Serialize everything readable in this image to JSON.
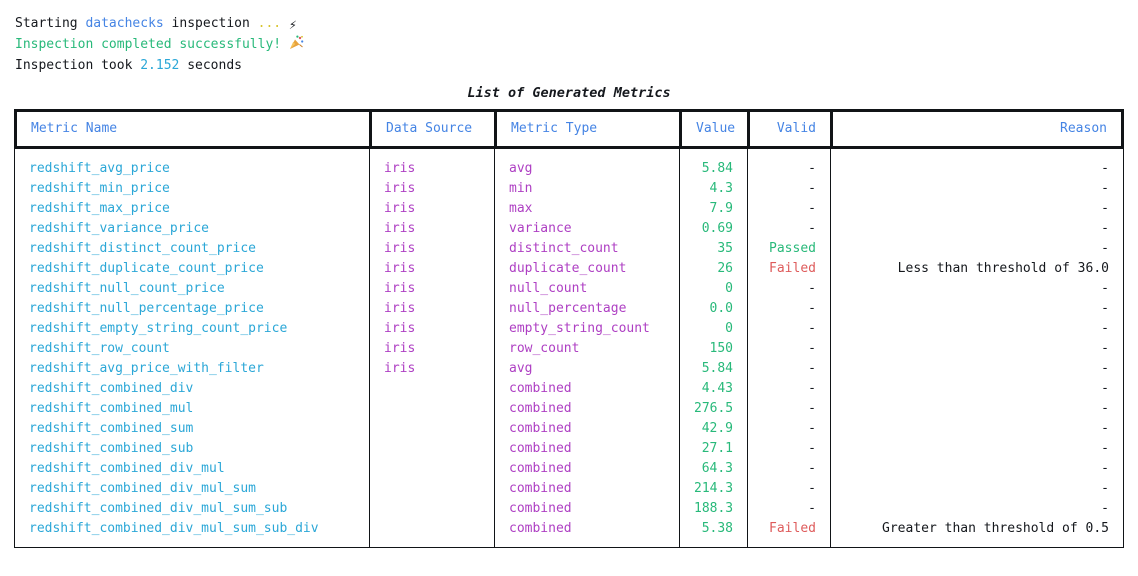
{
  "terminal": {
    "line1_prefix": "Starting ",
    "line1_app": "datachecks",
    "line1_mid": " inspection ",
    "line1_dots": "...",
    "line2_text": "Inspection completed successfully! ",
    "line3_prefix": "Inspection took ",
    "line3_duration": "2.152",
    "line3_suffix": " seconds"
  },
  "icons": {
    "lightning_bolt": "⚡",
    "party_popper": "🎉"
  },
  "table": {
    "title": "List of Generated Metrics",
    "columns": [
      {
        "label": "Metric Name",
        "key": "metric-name",
        "align": "left"
      },
      {
        "label": "Data Source",
        "key": "data-source",
        "align": "left"
      },
      {
        "label": "Metric Type",
        "key": "metric-type",
        "align": "left"
      },
      {
        "label": "Value",
        "key": "value",
        "align": "right"
      },
      {
        "label": "Valid",
        "key": "valid",
        "align": "right"
      },
      {
        "label": "Reason",
        "key": "reason",
        "align": "right"
      }
    ],
    "rows": [
      [
        "redshift_avg_price",
        "iris",
        "avg",
        "5.84",
        "-",
        "-"
      ],
      [
        "redshift_min_price",
        "iris",
        "min",
        "4.3",
        "-",
        "-"
      ],
      [
        "redshift_max_price",
        "iris",
        "max",
        "7.9",
        "-",
        "-"
      ],
      [
        "redshift_variance_price",
        "iris",
        "variance",
        "0.69",
        "-",
        "-"
      ],
      [
        "redshift_distinct_count_price",
        "iris",
        "distinct_count",
        "35",
        "Passed",
        "-"
      ],
      [
        "redshift_duplicate_count_price",
        "iris",
        "duplicate_count",
        "26",
        "Failed",
        "Less than threshold of 36.0"
      ],
      [
        "redshift_null_count_price",
        "iris",
        "null_count",
        "0",
        "-",
        "-"
      ],
      [
        "redshift_null_percentage_price",
        "iris",
        "null_percentage",
        "0.0",
        "-",
        "-"
      ],
      [
        "redshift_empty_string_count_price",
        "iris",
        "empty_string_count",
        "0",
        "-",
        "-"
      ],
      [
        "redshift_row_count",
        "iris",
        "row_count",
        "150",
        "-",
        "-"
      ],
      [
        "redshift_avg_price_with_filter",
        "iris",
        "avg",
        "5.84",
        "-",
        "-"
      ],
      [
        "redshift_combined_div",
        "",
        "combined",
        "4.43",
        "-",
        "-"
      ],
      [
        "redshift_combined_mul",
        "",
        "combined",
        "276.5",
        "-",
        "-"
      ],
      [
        "redshift_combined_sum",
        "",
        "combined",
        "42.9",
        "-",
        "-"
      ],
      [
        "redshift_combined_sub",
        "",
        "combined",
        "27.1",
        "-",
        "-"
      ],
      [
        "redshift_combined_div_mul",
        "",
        "combined",
        "64.3",
        "-",
        "-"
      ],
      [
        "redshift_combined_div_mul_sum",
        "",
        "combined",
        "214.3",
        "-",
        "-"
      ],
      [
        "redshift_combined_div_mul_sum_sub",
        "",
        "combined",
        "188.3",
        "-",
        "-"
      ],
      [
        "redshift_combined_div_mul_sum_sub_div",
        "",
        "combined",
        "5.38",
        "Failed",
        "Greater than threshold of 0.5"
      ]
    ]
  },
  "colors": {
    "ink": "#15181d",
    "line": "#111417",
    "blue": "#4584e4",
    "cyan": "#2ba7d7",
    "magenta": "#ae3fc3",
    "green": "#28b97a",
    "red": "#de5b5b",
    "yellow": "#d8c52e"
  }
}
